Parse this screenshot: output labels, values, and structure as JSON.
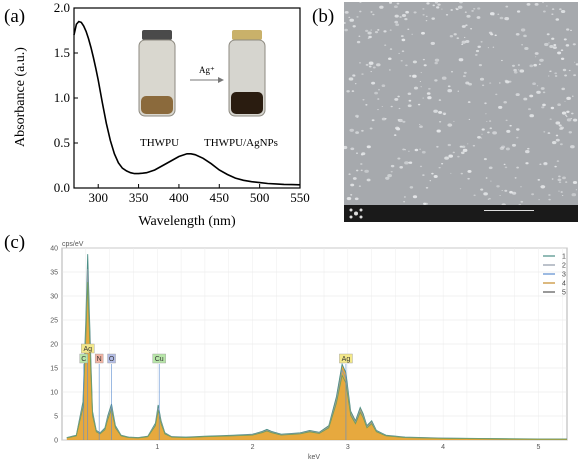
{
  "panels": {
    "a": "(a)",
    "b": "(b)",
    "c": "(c)"
  },
  "chart_data": [
    {
      "panel": "a",
      "type": "line",
      "xlabel": "Wavelength (nm)",
      "ylabel": "Absorbance (a.u.)",
      "xlim": [
        270,
        550
      ],
      "ylim": [
        0,
        2.0
      ],
      "xticks": [
        300,
        350,
        400,
        450,
        500,
        550
      ],
      "yticks": [
        0.0,
        0.5,
        1.0,
        1.5,
        2.0
      ],
      "x": [
        270,
        273,
        276,
        279,
        282,
        285,
        288,
        291,
        294,
        297,
        300,
        305,
        310,
        315,
        320,
        325,
        330,
        335,
        340,
        345,
        350,
        355,
        360,
        370,
        380,
        390,
        400,
        410,
        415,
        420,
        430,
        440,
        450,
        460,
        470,
        480,
        490,
        500,
        510,
        520,
        530,
        540,
        550
      ],
      "y": [
        1.7,
        1.82,
        1.85,
        1.84,
        1.8,
        1.74,
        1.66,
        1.56,
        1.45,
        1.33,
        1.2,
        0.95,
        0.72,
        0.53,
        0.38,
        0.28,
        0.22,
        0.19,
        0.17,
        0.16,
        0.16,
        0.165,
        0.17,
        0.2,
        0.25,
        0.3,
        0.35,
        0.38,
        0.38,
        0.37,
        0.33,
        0.27,
        0.2,
        0.15,
        0.11,
        0.085,
        0.07,
        0.06,
        0.05,
        0.045,
        0.04,
        0.038,
        0.035
      ],
      "inset": {
        "left_label": "THWPU",
        "right_label": "THWPU/AgNPs",
        "arrow_label": "Ag⁺"
      }
    },
    {
      "panel": "c",
      "type": "line",
      "ylabel": "cps/eV",
      "xlabel": "keV",
      "xlim": [
        0,
        5.3
      ],
      "ylim": [
        0,
        40
      ],
      "xticks": [
        1,
        2,
        3,
        4,
        5
      ],
      "yticks": [
        0,
        5,
        10,
        15,
        20,
        25,
        30,
        35,
        40
      ],
      "x": [
        0.05,
        0.15,
        0.22,
        0.25,
        0.27,
        0.29,
        0.32,
        0.36,
        0.4,
        0.45,
        0.48,
        0.52,
        0.56,
        0.62,
        0.7,
        0.8,
        0.9,
        0.98,
        1.01,
        1.04,
        1.08,
        1.15,
        1.3,
        1.5,
        1.8,
        2.0,
        2.1,
        2.15,
        2.2,
        2.3,
        2.5,
        2.6,
        2.7,
        2.8,
        2.88,
        2.94,
        2.98,
        3.03,
        3.08,
        3.13,
        3.16,
        3.2,
        3.25,
        3.3,
        3.4,
        3.6,
        4.0,
        4.5,
        5.0,
        5.3
      ],
      "y": [
        0.5,
        1.0,
        8.0,
        25.0,
        38.7,
        25.0,
        6.0,
        2.0,
        1.5,
        2.5,
        5.0,
        7.5,
        3.0,
        1.0,
        0.6,
        0.5,
        0.8,
        3.5,
        7.3,
        4.0,
        1.5,
        0.7,
        0.6,
        0.8,
        1.0,
        1.2,
        1.8,
        2.2,
        1.8,
        1.2,
        1.5,
        2.0,
        1.6,
        3.0,
        9.0,
        15.8,
        14.0,
        6.0,
        4.0,
        6.8,
        5.5,
        3.0,
        4.0,
        2.0,
        1.0,
        0.6,
        0.4,
        0.3,
        0.2,
        0.2
      ],
      "element_labels": [
        {
          "text": "Ag",
          "kev": 0.27
        },
        {
          "text": "C",
          "kev": 0.26
        },
        {
          "text": "N",
          "kev": 0.39
        },
        {
          "text": "O",
          "kev": 0.52
        },
        {
          "text": "Cu",
          "kev": 1.02
        },
        {
          "text": "Ag",
          "kev": 2.98
        }
      ],
      "legend": [
        "1",
        "2",
        "3",
        "4",
        "5"
      ],
      "colors": {
        "fill": "#e39a1c",
        "line1": "#4a8e86",
        "line2": "#8f9aa8",
        "line3": "#6f9f5a",
        "line4": "#c58a2a"
      }
    }
  ]
}
